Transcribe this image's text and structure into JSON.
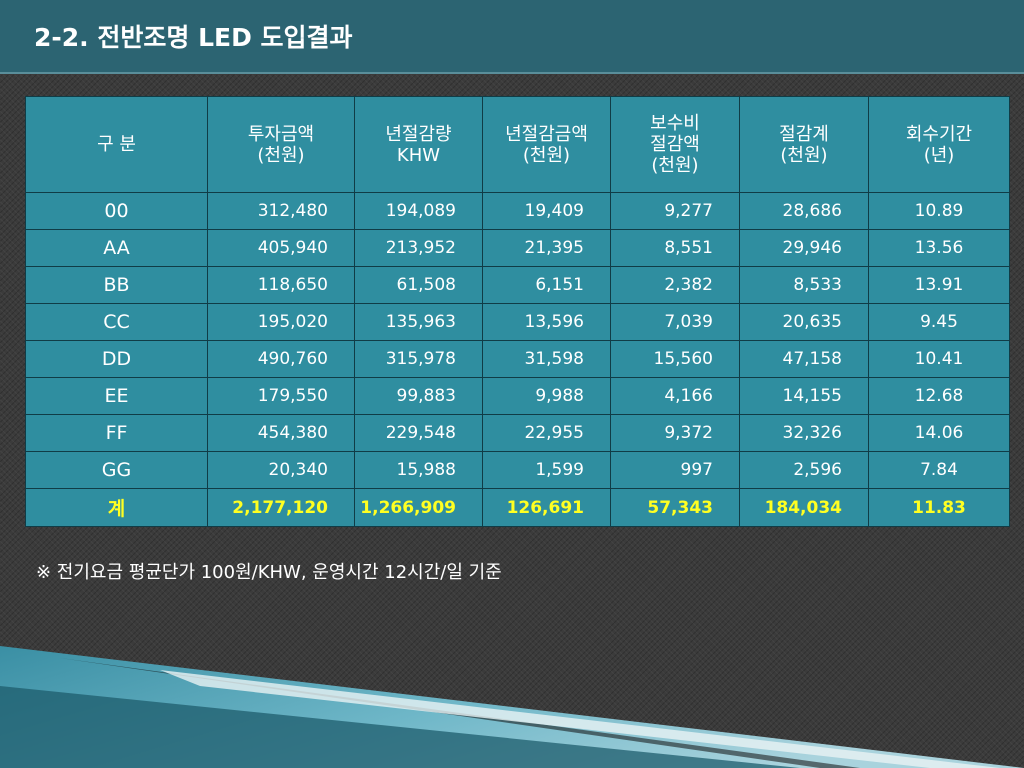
{
  "slide": {
    "title": "2-2. 전반조명 LED  도입결과",
    "note": "※ 전기요금 평균단가  100원/KHW,   운영시간 12시간/일 기준"
  },
  "table": {
    "headers": [
      [
        "구    분"
      ],
      [
        "투자금액",
        "(천원)"
      ],
      [
        "년절감량",
        "KHW"
      ],
      [
        "년절감금액",
        "(천원)"
      ],
      [
        "보수비",
        "절감액",
        "(천원)"
      ],
      [
        "절감계",
        "(천원)"
      ],
      [
        "회수기간",
        "(년)"
      ]
    ],
    "rows": [
      [
        "00",
        "312,480",
        "194,089",
        "19,409",
        "9,277",
        "28,686",
        "10.89"
      ],
      [
        "AA",
        "405,940",
        "213,952",
        "21,395",
        "8,551",
        "29,946",
        "13.56"
      ],
      [
        "BB",
        "118,650",
        "61,508",
        "6,151",
        "2,382",
        "8,533",
        "13.91"
      ],
      [
        "CC",
        "195,020",
        "135,963",
        "13,596",
        "7,039",
        "20,635",
        "9.45"
      ],
      [
        "DD",
        "490,760",
        "315,978",
        "31,598",
        "15,560",
        "47,158",
        "10.41"
      ],
      [
        "EE",
        "179,550",
        "99,883",
        "9,988",
        "4,166",
        "14,155",
        "12.68"
      ],
      [
        "FF",
        "454,380",
        "229,548",
        "22,955",
        "9,372",
        "32,326",
        "14.06"
      ],
      [
        "GG",
        "20,340",
        "15,988",
        "1,599",
        "997",
        "2,596",
        "7.84"
      ]
    ],
    "total": [
      "계",
      "2,177,120",
      "1,266,909",
      "126,691",
      "57,343",
      "184,034",
      "11.83"
    ]
  },
  "colors": {
    "header_bar": "#2c6472",
    "table_fill": "#2f8ea0",
    "total_text": "#ffff22",
    "grid_line": "#103c46"
  }
}
